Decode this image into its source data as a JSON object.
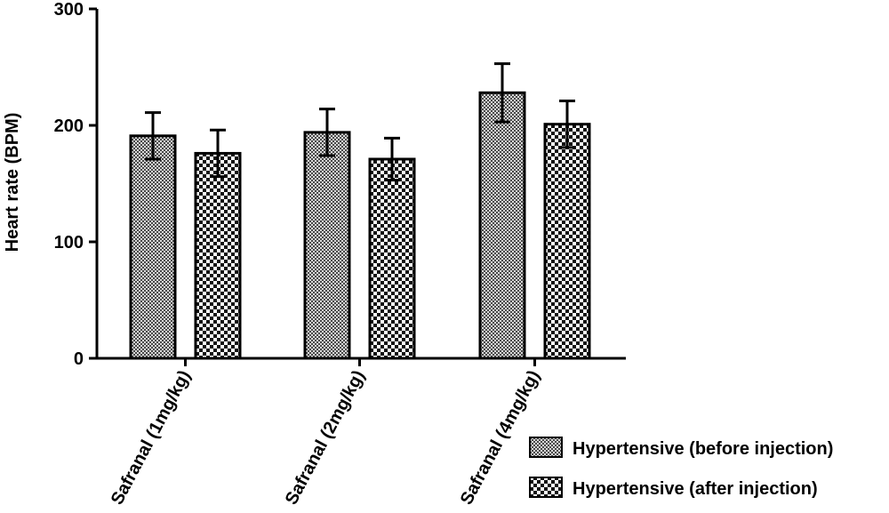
{
  "chart_data": {
    "type": "bar",
    "title": "",
    "xlabel": "",
    "ylabel": "Heart rate (BPM)",
    "ylim": [
      0,
      300
    ],
    "yticks": [
      0,
      100,
      200,
      300
    ],
    "grid": false,
    "legend_position": "bottom-right",
    "categories": [
      "Safranal (1mg/kg)",
      "Safranal (2mg/kg)",
      "Safranal (4mg/kg)"
    ],
    "series": [
      {
        "name": "Hypertensive (before injection)",
        "pattern": "fine-checker",
        "values": [
          191,
          194,
          228
        ],
        "errors": [
          20,
          20,
          25
        ]
      },
      {
        "name": "Hypertensive (after injection)",
        "pattern": "coarse-checker",
        "values": [
          176,
          171,
          201
        ],
        "errors": [
          20,
          18,
          20
        ]
      }
    ]
  }
}
